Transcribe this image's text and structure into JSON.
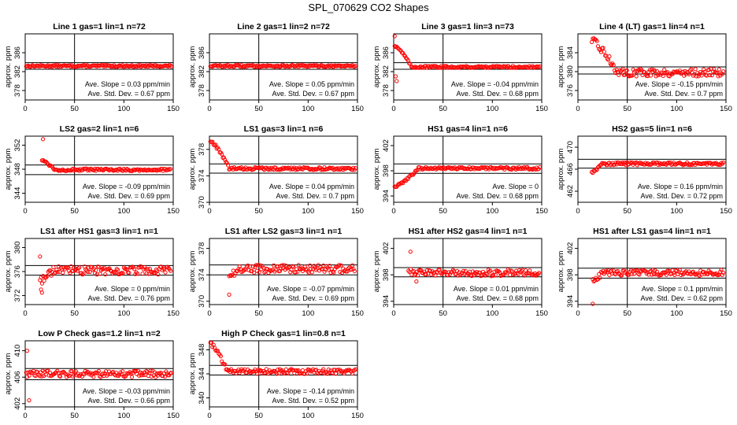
{
  "page_title": "SPL_070629  CO2 Shapes",
  "chart_data": [
    {
      "type": "scatter",
      "title": "Line 1 gas=1 lin=1 n=72",
      "ylabel": "approx. ppm",
      "xlim": [
        0,
        150
      ],
      "xticks": [
        0,
        50,
        100,
        150
      ],
      "ylim": [
        376,
        390
      ],
      "yticks": [
        378,
        382,
        386
      ],
      "hlines": [
        383.9,
        382.5
      ],
      "vline": 50,
      "slope": "Ave. Slope =  0.03  ppm/min",
      "stddev": "Ave. Std. Dev. =  0.67  ppm",
      "shape": {
        "start_y": 383.0,
        "end_y": 383.2,
        "noise": 0.18,
        "start_x": 1
      }
    },
    {
      "type": "scatter",
      "title": "Line 2 gas=1 lin=2 n=72",
      "ylabel": "approx. ppm",
      "xlim": [
        0,
        150
      ],
      "xticks": [
        0,
        50,
        100,
        150
      ],
      "ylim": [
        376,
        390
      ],
      "yticks": [
        378,
        382,
        386
      ],
      "hlines": [
        383.9,
        382.5
      ],
      "vline": 50,
      "slope": "Ave. Slope =  0.05  ppm/min",
      "stddev": "Ave. Std. Dev. =  0.67  ppm",
      "shape": {
        "start_y": 382.8,
        "end_y": 383.2,
        "noise": 0.2,
        "start_x": 1
      }
    },
    {
      "type": "scatter",
      "title": "Line 3 gas=1 lin=3 n=73",
      "ylabel": "approx. ppm",
      "xlim": [
        0,
        150
      ],
      "xticks": [
        0,
        50,
        100,
        150
      ],
      "ylim": [
        376,
        390
      ],
      "yticks": [
        378,
        382,
        386
      ],
      "hlines": [
        383.9,
        382.5
      ],
      "vline": 50,
      "slope": "Ave. Slope =  -0.04  ppm/min",
      "stddev": "Ave. Std. Dev. =  0.68  ppm",
      "shape": {
        "start_y": 387.5,
        "end_y": 383.0,
        "noise": 0.2,
        "start_x": 1,
        "spike_end": 18,
        "outliers": [
          [
            2,
            381
          ],
          [
            3,
            380
          ],
          [
            1,
            389.5
          ]
        ]
      }
    },
    {
      "type": "scatter",
      "title": "Line 4 (LT) gas=1 lin=4 n=1",
      "ylabel": "approx. ppm",
      "xlim": [
        0,
        150
      ],
      "xticks": [
        0,
        50,
        100,
        150
      ],
      "ylim": [
        374,
        388
      ],
      "yticks": [
        376,
        380,
        384
      ],
      "hlines": [
        381,
        379.5
      ],
      "vline": 50,
      "slope": "Ave. Slope =  -0.15  ppm/min",
      "stddev": "Ave. Std. Dev. =  0.7  ppm",
      "shape": {
        "start_y": 386.5,
        "end_y": 379.8,
        "noise": 0.8,
        "start_x": 14,
        "spike_end": 40
      }
    },
    {
      "type": "scatter",
      "title": "LS2 gas=2 lin=1 n=6",
      "ylabel": "approx. ppm",
      "xlim": [
        0,
        150
      ],
      "xticks": [
        0,
        50,
        100,
        150
      ],
      "ylim": [
        342.5,
        353.5
      ],
      "yticks": [
        344,
        348,
        352
      ],
      "hlines": [
        348.7,
        347.1
      ],
      "vline": 50,
      "slope": "Ave. Slope =  -0.09  ppm/min",
      "stddev": "Ave. Std. Dev. =  0.69  ppm",
      "shape": {
        "start_y": 349.5,
        "end_y": 347.9,
        "noise": 0.2,
        "start_x": 17,
        "spike_end": 30,
        "outliers": [
          [
            18,
            353
          ],
          [
            20,
            349.3
          ]
        ]
      }
    },
    {
      "type": "scatter",
      "title": "LS1 gas=3 lin=1 n=6",
      "ylabel": "approx. ppm",
      "xlim": [
        0,
        150
      ],
      "xticks": [
        0,
        50,
        100,
        150
      ],
      "ylim": [
        370,
        380
      ],
      "yticks": [
        370,
        374,
        378
      ],
      "hlines": [
        375.8,
        374.4
      ],
      "vline": 50,
      "slope": "Ave. Slope =  0.04  ppm/min",
      "stddev": "Ave. Std. Dev. =  0.7  ppm",
      "shape": {
        "start_y": 379.2,
        "end_y": 375.1,
        "noise": 0.2,
        "start_x": 1,
        "spike_end": 20
      }
    },
    {
      "type": "scatter",
      "title": "HS1 gas=4 lin=1 n=6",
      "ylabel": "approx. ppm",
      "xlim": [
        0,
        150
      ],
      "xticks": [
        0,
        50,
        100,
        150
      ],
      "ylim": [
        393,
        403.5
      ],
      "yticks": [
        394,
        398,
        402
      ],
      "hlines": [
        399.1,
        397.6
      ],
      "vline": 50,
      "slope": "Ave. Slope =  0",
      "stddev": "Ave. Std. Dev. =  0.68  ppm",
      "shape": {
        "start_y": 395.5,
        "end_y": 398.4,
        "noise": 0.2,
        "start_x": 1,
        "spike_end": 25
      }
    },
    {
      "type": "scatter",
      "title": "HS2 gas=5 lin=1 n=6",
      "ylabel": "approx. ppm",
      "xlim": [
        0,
        150
      ],
      "xticks": [
        0,
        50,
        100,
        150
      ],
      "ylim": [
        460,
        472
      ],
      "yticks": [
        462,
        466,
        470
      ],
      "hlines": [
        467.8,
        466.2
      ],
      "vline": 50,
      "slope": "Ave. Slope =  0.16  ppm/min",
      "stddev": "Ave. Std. Dev. =  0.72  ppm",
      "shape": {
        "start_y": 465.5,
        "end_y": 467.0,
        "noise": 0.25,
        "start_x": 14,
        "spike_end": 24
      }
    },
    {
      "type": "scatter",
      "title": "LS1 after HS1 gas=3 lin=1 n=1",
      "ylabel": "approx. ppm",
      "xlim": [
        0,
        150
      ],
      "xticks": [
        0,
        50,
        100,
        150
      ],
      "ylim": [
        370.5,
        381.5
      ],
      "yticks": [
        372,
        376,
        380
      ],
      "hlines": [
        377.0,
        375.4
      ],
      "vline": 50,
      "slope": "Ave. Slope =  0  ppm/min",
      "stddev": "Ave. Std. Dev. =  0.76  ppm",
      "shape": {
        "start_y": 374.5,
        "end_y": 376.2,
        "noise": 0.7,
        "start_x": 15,
        "spike_end": 28,
        "outliers": [
          [
            15,
            378.5
          ],
          [
            16,
            373
          ],
          [
            17,
            372.5
          ]
        ]
      }
    },
    {
      "type": "scatter",
      "title": "LS1 after LS2 gas=3 lin=1 n=1",
      "ylabel": "approx. ppm",
      "xlim": [
        0,
        150
      ],
      "xticks": [
        0,
        50,
        100,
        150
      ],
      "ylim": [
        369.5,
        379.5
      ],
      "yticks": [
        370,
        374,
        378
      ],
      "hlines": [
        375.5,
        374.0
      ],
      "vline": 50,
      "slope": "Ave. Slope =  -0.07  ppm/min",
      "stddev": "Ave. Std. Dev. =  0.69  ppm",
      "shape": {
        "start_y": 373.7,
        "end_y": 374.9,
        "noise": 0.6,
        "start_x": 20,
        "spike_end": 28,
        "outliers": [
          [
            20,
            371
          ]
        ]
      }
    },
    {
      "type": "scatter",
      "title": "HS1 after HS2 gas=4 lin=1 n=1",
      "ylabel": "approx. ppm",
      "xlim": [
        0,
        150
      ],
      "xticks": [
        0,
        50,
        100,
        150
      ],
      "ylim": [
        393.5,
        403.5
      ],
      "yticks": [
        394,
        398,
        402
      ],
      "hlines": [
        399.1,
        397.7
      ],
      "vline": 50,
      "slope": "Ave. Slope =  0.01  ppm/min",
      "stddev": "Ave. Std. Dev. =  0.68  ppm",
      "shape": {
        "start_y": 398.5,
        "end_y": 398.3,
        "noise": 0.5,
        "start_x": 15,
        "spike_end": 28,
        "outliers": [
          [
            17,
            401.5
          ],
          [
            23,
            397
          ]
        ]
      }
    },
    {
      "type": "scatter",
      "title": "HS1 after LS1 gas=4 lin=1 n=1",
      "ylabel": "approx. ppm",
      "xlim": [
        0,
        150
      ],
      "xticks": [
        0,
        50,
        100,
        150
      ],
      "ylim": [
        393.5,
        403.5
      ],
      "yticks": [
        394,
        398,
        402
      ],
      "hlines": [
        399.0,
        397.5
      ],
      "vline": 50,
      "slope": "Ave. Slope =  0.1  ppm/min",
      "stddev": "Ave. Std. Dev. =  0.62  ppm",
      "shape": {
        "start_y": 397.2,
        "end_y": 398.3,
        "noise": 0.45,
        "start_x": 15,
        "spike_end": 25,
        "outliers": [
          [
            15,
            393.5
          ]
        ]
      }
    },
    {
      "type": "scatter",
      "title": "Low P Check gas=1.2 lin=1 n=2",
      "ylabel": "approx. ppm",
      "xlim": [
        0,
        150
      ],
      "xticks": [
        0,
        50,
        100,
        150
      ],
      "ylim": [
        401.5,
        411.5
      ],
      "yticks": [
        402,
        406,
        410
      ],
      "hlines": [
        407.3,
        405.6
      ],
      "vline": 50,
      "slope": "Ave. Slope =  -0.03  ppm/min",
      "stddev": "Ave. Std. Dev. =  0.66  ppm",
      "shape": {
        "start_y": 406.5,
        "end_y": 406.5,
        "noise": 0.5,
        "start_x": 1,
        "spike_end": 0,
        "outliers": [
          [
            2,
            410
          ],
          [
            4,
            402.5
          ]
        ]
      }
    },
    {
      "type": "scatter",
      "title": "High P Check gas=1 lin=0.8 n=1",
      "ylabel": "approx. ppm",
      "xlim": [
        0,
        150
      ],
      "xticks": [
        0,
        50,
        100,
        150
      ],
      "ylim": [
        338.5,
        349.5
      ],
      "yticks": [
        340,
        344,
        348
      ],
      "hlines": [
        345.4,
        343.8
      ],
      "vline": 50,
      "slope": "Ave. Slope =  -0.14  ppm/min",
      "stddev": "Ave. Std. Dev. =  0.52  ppm",
      "shape": {
        "start_y": 349.0,
        "end_y": 344.4,
        "noise": 0.4,
        "start_x": 1,
        "spike_end": 18
      }
    }
  ]
}
